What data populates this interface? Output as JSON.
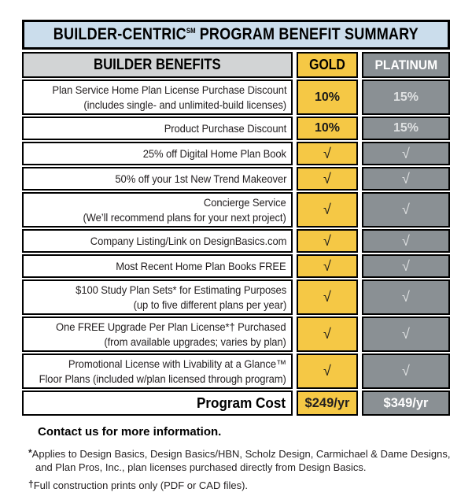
{
  "title": {
    "prefix": "BUILDER-CENTRIC",
    "mark": "SM",
    "suffix": " PROGRAM BENEFIT SUMMARY"
  },
  "header": {
    "benefits": "BUILDER BENEFITS",
    "gold": "GOLD",
    "platinum": "PLATINUM"
  },
  "rows": [
    {
      "benefit_lines": [
        "Plan Service Home Plan License Purchase Discount",
        "(includes single- and unlimited-build licenses)"
      ],
      "gold": "10%",
      "platinum": "15%"
    },
    {
      "benefit_lines": [
        "Product Purchase Discount"
      ],
      "gold": "10%",
      "platinum": "15%"
    },
    {
      "benefit_lines": [
        "25% off Digital Home Plan Book"
      ],
      "gold": "√",
      "platinum": "√"
    },
    {
      "benefit_lines": [
        "50% off your 1st New Trend Makeover"
      ],
      "gold": "√",
      "platinum": "√"
    },
    {
      "benefit_lines": [
        "Concierge Service",
        "(We’ll recommend plans for your next project)"
      ],
      "gold": "√",
      "platinum": "√"
    },
    {
      "benefit_lines": [
        "Company Listing/Link on DesignBasics.com"
      ],
      "gold": "√",
      "platinum": "√"
    },
    {
      "benefit_lines": [
        "Most Recent Home Plan Books FREE"
      ],
      "gold": "√",
      "platinum": "√"
    },
    {
      "benefit_lines": [
        "$100 Study Plan Sets* for Estimating Purposes",
        "(up to five different plans per year)"
      ],
      "gold": "√",
      "platinum": "√"
    },
    {
      "benefit_lines": [
        "One FREE Upgrade Per Plan License*† Purchased",
        "(from available upgrades; varies by plan)"
      ],
      "gold": "√",
      "platinum": "√"
    },
    {
      "benefit_lines": [
        "Promotional License with Livability at a Glance™",
        "Floor Plans (included w/plan licensed through program)"
      ],
      "gold": "√",
      "platinum": "√"
    }
  ],
  "cost_row": {
    "label": "Program Cost",
    "gold": "$249/yr",
    "platinum": "$349/yr"
  },
  "footer": {
    "contact": "Contact us for more information.",
    "note1_marker": "*",
    "note1_line1": "Applies to Design Basics, Design Basics/HBN, Scholz Design, Carmichael & Dame Designs,",
    "note1_line2": "and Plan Pros, Inc., plan licenses purchased directly from Design Basics.",
    "note2_marker": "†",
    "note2_text": "Full construction prints only (PDF or CAD files)."
  },
  "colors": {
    "border": "#000000",
    "title-bg": "#CBDDEC",
    "header-bg": "#D2D4D5",
    "gold": "#F5C845",
    "platinum": "#8A9094",
    "platinum-text": "#DFE1E2",
    "text": "#231F20"
  }
}
